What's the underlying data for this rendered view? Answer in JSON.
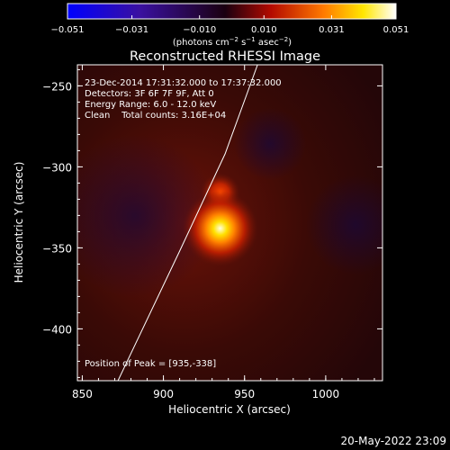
{
  "chart_data": {
    "type": "heatmap",
    "title": "Reconstructed RHESSI Image",
    "xlabel": "Heliocentric X (arcsec)",
    "ylabel": "Heliocentric Y (arcsec)",
    "xlim": [
      847,
      1035
    ],
    "ylim": [
      -432,
      -237
    ],
    "x_ticks": [
      {
        "v": 850,
        "label": "850"
      },
      {
        "v": 900,
        "label": "900"
      },
      {
        "v": 950,
        "label": "950"
      },
      {
        "v": 1000,
        "label": "1000"
      }
    ],
    "y_ticks": [
      {
        "v": -250,
        "label": "−250"
      },
      {
        "v": -300,
        "label": "−300"
      },
      {
        "v": -350,
        "label": "−350"
      },
      {
        "v": -400,
        "label": "−400"
      }
    ],
    "colorbar": {
      "range": [
        -0.051,
        0.051
      ],
      "ticks": [
        {
          "v": -0.051,
          "label": "−0.051"
        },
        {
          "v": -0.031,
          "label": "−0.031"
        },
        {
          "v": -0.01,
          "label": "−0.010"
        },
        {
          "v": 0.01,
          "label": "0.010"
        },
        {
          "v": 0.031,
          "label": "0.031"
        },
        {
          "v": 0.051,
          "label": "0.051"
        }
      ],
      "units_prefix": "(photons cm",
      "units_exp1": "−2",
      "units_mid": " s",
      "units_exp2": "−1",
      "units_mid2": " asec",
      "units_exp3": "−2",
      "units_suffix": ")",
      "colormap": "hot (blue-black-red-yellow-white)"
    },
    "peak": {
      "x": 935,
      "y": -338,
      "value": 0.051
    },
    "secondary_source": {
      "x": 935,
      "y": -316,
      "value": 0.022
    },
    "limb": {
      "points": [
        [
          872,
          -432
        ],
        [
          910,
          -352
        ],
        [
          938,
          -292
        ],
        [
          958,
          -237
        ]
      ]
    },
    "annotations": [
      "23-Dec-2014 17:31:32.000 to 17:37:32.000",
      "Detectors: 3F 6F 7F 9F, Att 0",
      "Energy Range: 6.0 - 12.0 keV",
      "Clean    Total counts: 3.16E+04"
    ],
    "peak_label": "Position of Peak = [935,-338]",
    "footer_timestamp": "20-May-2022 23:09"
  }
}
